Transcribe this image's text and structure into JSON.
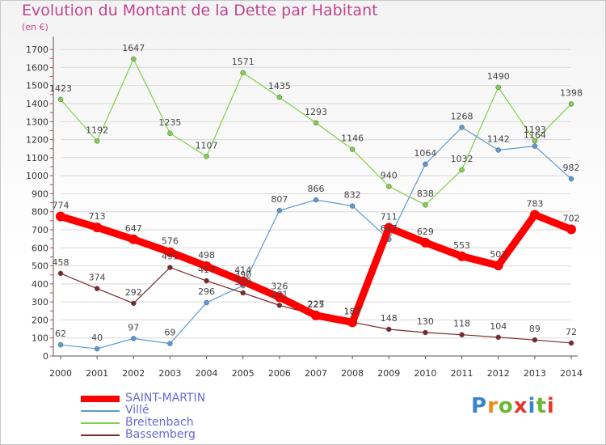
{
  "chart_data": {
    "type": "line",
    "title": "Evolution du Montant de la Dette par Habitant",
    "subtitle": "(en €)",
    "x": [
      "2000",
      "2001",
      "2002",
      "2003",
      "2004",
      "2005",
      "2006",
      "2007",
      "2008",
      "2009",
      "2010",
      "2011",
      "2012",
      "2013",
      "2014"
    ],
    "yticks": [
      0,
      100,
      200,
      300,
      400,
      500,
      600,
      700,
      800,
      900,
      1000,
      1100,
      1200,
      1300,
      1400,
      1500,
      1600,
      1700
    ],
    "ylim": [
      0,
      1750
    ],
    "grid": "horizontal",
    "legend_position": "bottom-left",
    "series": [
      {
        "name": "SAINT-MARTIN",
        "color": "#ff0000",
        "values": [
          774,
          713,
          647,
          576,
          498,
          414,
          326,
          225,
          187,
          711,
          629,
          553,
          502,
          783,
          702
        ]
      },
      {
        "name": "Villé",
        "color": "#5a9bd5",
        "values": [
          62,
          40,
          97,
          69,
          296,
          390,
          807,
          866,
          832,
          647,
          1064,
          1268,
          1142,
          1164,
          982
        ]
      },
      {
        "name": "Breitenbach",
        "color": "#80d04a",
        "values": [
          1423,
          1192,
          1647,
          1235,
          1107,
          1571,
          1435,
          1293,
          1146,
          940,
          838,
          1032,
          1490,
          1193,
          1398
        ]
      },
      {
        "name": "Bassemberg",
        "color": "#7a2a2a",
        "values": [
          458,
          374,
          292,
          491,
          417,
          350,
          281,
          227,
          187,
          148,
          130,
          118,
          104,
          89,
          72
        ]
      }
    ]
  },
  "logo": {
    "letters": [
      "P",
      "r",
      "o",
      "x",
      "i",
      "t",
      "i"
    ],
    "colors": [
      "#3a86c8",
      "#f08a1c",
      "#6ab832",
      "#e23a2a",
      "#3a86c8",
      "#6ab832",
      "#e23a2a"
    ]
  }
}
